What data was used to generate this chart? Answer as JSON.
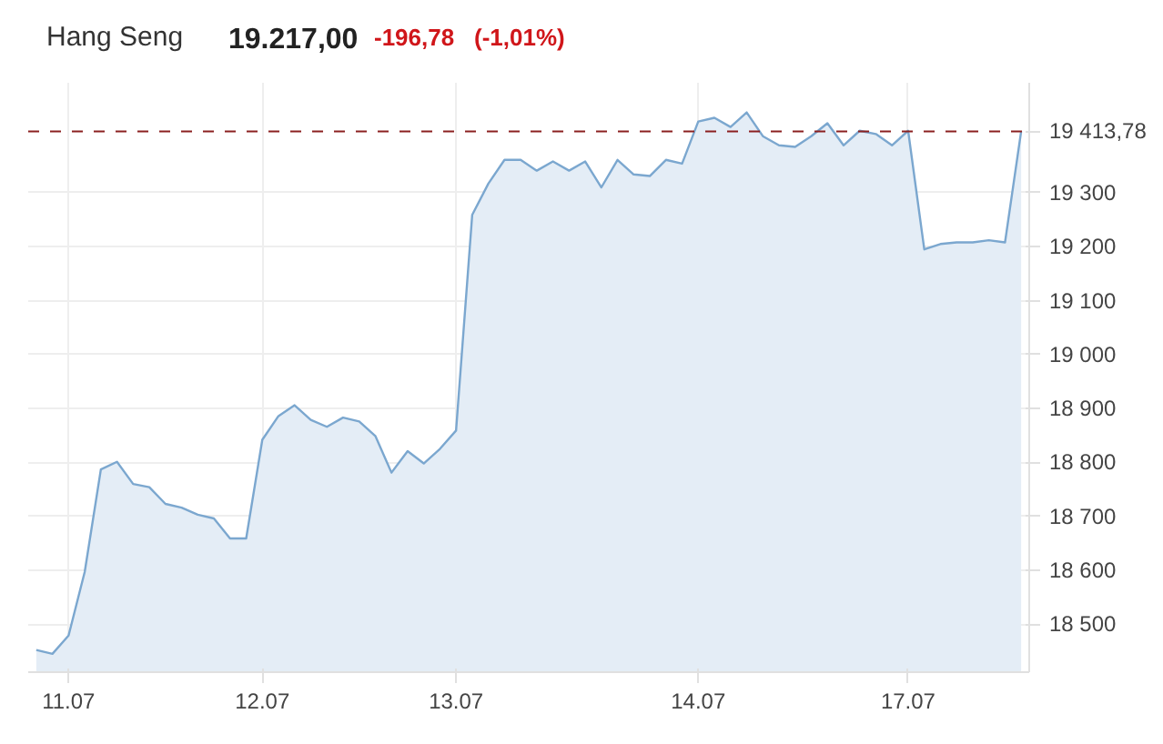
{
  "chart_data": {
    "type": "area",
    "title": "Hang Seng",
    "annotations": [
      "19.217,00",
      "-196,78",
      "(-1,01%)"
    ],
    "categories": [
      null,
      null,
      "11.07",
      null,
      null,
      null,
      null,
      null,
      null,
      null,
      null,
      null,
      null,
      null,
      "12.07",
      null,
      null,
      null,
      null,
      null,
      null,
      null,
      null,
      null,
      null,
      null,
      "13.07",
      null,
      null,
      null,
      null,
      null,
      null,
      null,
      null,
      null,
      null,
      null,
      null,
      null,
      null,
      "14.07",
      null,
      null,
      null,
      null,
      null,
      null,
      null,
      null,
      null,
      null,
      null,
      null,
      "17.07",
      null,
      null,
      null,
      null,
      null,
      null,
      null
    ],
    "series": [
      {
        "color": "#7ba7cf",
        "values": [
          18452,
          18445,
          18479,
          18597,
          18787,
          18801,
          18760,
          18754,
          18723,
          18716,
          18703,
          18696,
          18659,
          18659,
          18842,
          18886,
          18906,
          18879,
          18866,
          18883,
          18876,
          18849,
          18781,
          18821,
          18798,
          18825,
          18859,
          19259,
          19317,
          19361,
          19361,
          19341,
          19358,
          19341,
          19358,
          19310,
          19361,
          19334,
          19331,
          19361,
          19354,
          19432,
          19439,
          19422,
          19449,
          19405,
          19388,
          19385,
          19405,
          19429,
          19388,
          19415,
          19409,
          19388,
          19415,
          19195,
          19205,
          19208,
          19208,
          19212,
          19208,
          19414
        ]
      }
    ],
    "ylim": [
      18411,
      19504
    ],
    "yticks": [
      {
        "value": 18500,
        "label": "18 500"
      },
      {
        "value": 18600,
        "label": "18 600"
      },
      {
        "value": 18700,
        "label": "18 700"
      },
      {
        "value": 18800,
        "label": "18 800"
      },
      {
        "value": 18900,
        "label": "18 900"
      },
      {
        "value": 19000,
        "label": "19 000"
      },
      {
        "value": 19100,
        "label": "19 100"
      },
      {
        "value": 19200,
        "label": "19 200"
      },
      {
        "value": 19300,
        "label": "19 300"
      }
    ],
    "ref_lines": [
      {
        "axis": "y",
        "value": 19413.78,
        "label": "19 413,78",
        "color": "#8b2020",
        "line_style": "dashed"
      }
    ],
    "grid": true,
    "marker": "none",
    "line_style": "solid"
  }
}
